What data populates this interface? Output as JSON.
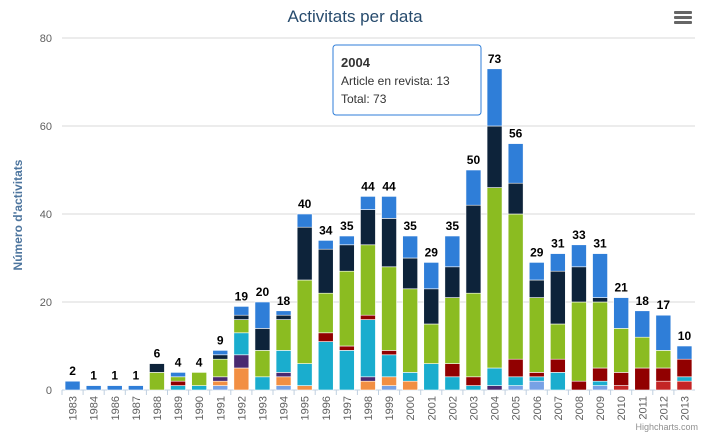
{
  "chart_data": {
    "type": "stacked_bar",
    "title": "Activitats per data",
    "y_axis_label": "Número d'activitats",
    "credit": "Highcharts.com",
    "categories": [
      "1983",
      "1984",
      "1986",
      "1987",
      "1988",
      "1989",
      "1990",
      "1991",
      "1992",
      "1993",
      "1994",
      "1995",
      "1996",
      "1997",
      "1998",
      "1999",
      "2000",
      "2001",
      "2002",
      "2003",
      "2004",
      "2005",
      "2006",
      "2007",
      "2008",
      "2009",
      "2010",
      "2011",
      "2012",
      "2013"
    ],
    "ylim": [
      0,
      80
    ],
    "yticks": [
      0,
      20,
      40,
      60,
      80
    ],
    "grid": true,
    "series": [
      {
        "name": "Article en revista",
        "color": "#2f7ed8",
        "values": [
          2,
          1,
          1,
          1,
          0,
          1,
          0,
          1,
          2,
          6,
          1,
          3,
          2,
          2,
          3,
          5,
          5,
          6,
          7,
          8,
          13,
          9,
          4,
          4,
          5,
          10,
          7,
          6,
          8,
          3
        ]
      },
      {
        "color": "#0d233a",
        "values": [
          0,
          0,
          0,
          0,
          2,
          0,
          0,
          1,
          1,
          5,
          1,
          12,
          10,
          6,
          8,
          11,
          7,
          8,
          7,
          20,
          14,
          7,
          4,
          12,
          8,
          1,
          0,
          0,
          0,
          0
        ]
      },
      {
        "color": "#8bbc21",
        "values": [
          0,
          0,
          0,
          0,
          4,
          1,
          3,
          4,
          3,
          6,
          7,
          19,
          9,
          17,
          16,
          19,
          19,
          9,
          15,
          19,
          41,
          33,
          17,
          8,
          18,
          15,
          10,
          7,
          4,
          0
        ]
      },
      {
        "color": "#910000",
        "values": [
          0,
          0,
          0,
          0,
          0,
          1,
          0,
          0,
          0,
          0,
          0,
          0,
          2,
          1,
          1,
          1,
          0,
          0,
          3,
          2,
          0,
          4,
          1,
          3,
          2,
          3,
          3,
          5,
          3,
          4
        ]
      },
      {
        "color": "#1aadce",
        "values": [
          0,
          0,
          0,
          0,
          0,
          1,
          1,
          0,
          5,
          3,
          5,
          5,
          11,
          9,
          13,
          5,
          2,
          6,
          3,
          1,
          4,
          2,
          1,
          4,
          0,
          1,
          0,
          0,
          0,
          1
        ]
      },
      {
        "color": "#492970",
        "values": [
          0,
          0,
          0,
          0,
          0,
          0,
          0,
          1,
          3,
          0,
          1,
          0,
          0,
          0,
          1,
          0,
          0,
          0,
          0,
          0,
          1,
          0,
          0,
          0,
          0,
          0,
          0,
          0,
          0,
          0
        ]
      },
      {
        "color": "#f28f43",
        "values": [
          0,
          0,
          0,
          0,
          0,
          0,
          0,
          1,
          5,
          0,
          2,
          1,
          0,
          0,
          2,
          2,
          2,
          0,
          0,
          0,
          0,
          0,
          0,
          0,
          0,
          0,
          0,
          0,
          0,
          0
        ]
      },
      {
        "color": "#77a1e5",
        "values": [
          0,
          0,
          0,
          0,
          0,
          0,
          0,
          1,
          0,
          0,
          1,
          0,
          0,
          0,
          0,
          1,
          0,
          0,
          0,
          0,
          0,
          1,
          2,
          0,
          0,
          1,
          0,
          0,
          0,
          0
        ]
      },
      {
        "color": "#c42525",
        "values": [
          0,
          0,
          0,
          0,
          0,
          0,
          0,
          0,
          0,
          0,
          0,
          0,
          0,
          0,
          0,
          0,
          0,
          0,
          0,
          0,
          0,
          0,
          0,
          0,
          0,
          0,
          1,
          0,
          2,
          2
        ]
      }
    ],
    "stack_totals": [
      2,
      1,
      1,
      1,
      6,
      4,
      4,
      9,
      19,
      20,
      18,
      40,
      34,
      35,
      44,
      44,
      35,
      29,
      35,
      50,
      73,
      56,
      29,
      31,
      33,
      31,
      21,
      18,
      17,
      10
    ],
    "tooltip": {
      "title": "2004",
      "lines": [
        "Article en revista: 13",
        "Total: 73"
      ]
    }
  }
}
